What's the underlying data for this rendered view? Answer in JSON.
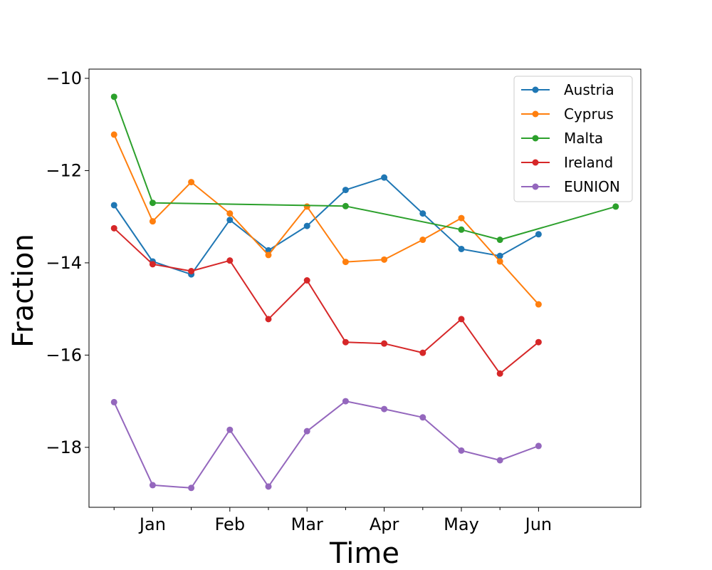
{
  "chart_data": {
    "type": "line",
    "title": "",
    "xlabel": "Time",
    "ylabel": "Fraction",
    "x_tick_labels": [
      "",
      "Jan",
      "",
      "Feb",
      "",
      "Mar",
      "",
      "Apr",
      "",
      "May",
      "",
      "Jun"
    ],
    "x_range": [
      -0.65,
      13.65
    ],
    "ylim": [
      -19.3,
      -9.8
    ],
    "y_ticks": [
      -10,
      -12,
      -14,
      -16,
      -18
    ],
    "y_tick_labels": [
      "−10",
      "−12",
      "−14",
      "−16",
      "−18"
    ],
    "legend_position": "top-right",
    "grid": false,
    "series": [
      {
        "name": "Austria",
        "color": "#1f77b4",
        "x": [
          0,
          1,
          2,
          3,
          4,
          5,
          6,
          7,
          8,
          9,
          10,
          11
        ],
        "y": [
          -12.75,
          -13.97,
          -14.25,
          -13.07,
          -13.73,
          -13.2,
          -12.42,
          -12.15,
          -12.93,
          -13.7,
          -13.85,
          -13.38
        ]
      },
      {
        "name": "Cyprus",
        "color": "#ff7f0e",
        "x": [
          0,
          1,
          2,
          3,
          4,
          5,
          6,
          7,
          8,
          9,
          10,
          11
        ],
        "y": [
          -11.22,
          -13.1,
          -12.25,
          -12.93,
          -13.83,
          -12.78,
          -13.98,
          -13.93,
          -13.5,
          -13.03,
          -13.97,
          -14.9
        ]
      },
      {
        "name": "Malta",
        "color": "#2ca02c",
        "x": [
          0,
          1,
          6,
          9,
          10,
          13
        ],
        "y": [
          -10.4,
          -12.7,
          -12.77,
          -13.28,
          -13.5,
          -12.78
        ]
      },
      {
        "name": "Ireland",
        "color": "#d62728",
        "x": [
          0,
          1,
          2,
          3,
          4,
          5,
          6,
          7,
          8,
          9,
          10,
          11
        ],
        "y": [
          -13.25,
          -14.03,
          -14.18,
          -13.95,
          -15.22,
          -14.38,
          -15.72,
          -15.75,
          -15.95,
          -15.22,
          -16.4,
          -15.72
        ]
      },
      {
        "name": "EUNION",
        "color": "#9467bd",
        "x": [
          0,
          1,
          2,
          3,
          4,
          5,
          6,
          7,
          8,
          9,
          10,
          11
        ],
        "y": [
          -17.02,
          -18.82,
          -18.88,
          -17.62,
          -18.85,
          -17.65,
          -17.0,
          -17.17,
          -17.35,
          -18.07,
          -18.28,
          -17.97
        ]
      }
    ]
  }
}
